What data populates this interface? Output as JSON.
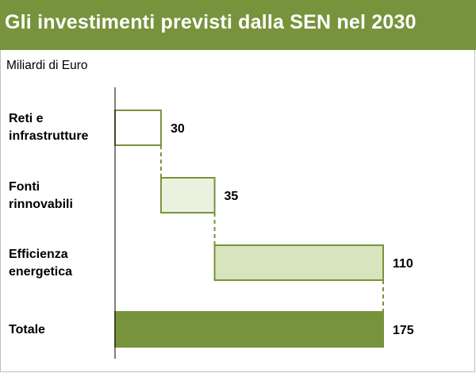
{
  "header": {
    "title": "Gli investimenti previsti dalla SEN nel 2030"
  },
  "chart_data": {
    "type": "bar",
    "subtype": "waterfall",
    "unit_label": "Miliardi di Euro",
    "orientation": "horizontal",
    "categories": [
      "Reti e\ninfrastrutture",
      "Fonti\nrinnovabili",
      "Efficienza\nenergetica",
      "Totale"
    ],
    "values": [
      30,
      35,
      110,
      175
    ],
    "data_labels": [
      "30",
      "35",
      "110",
      "175"
    ],
    "xlim": [
      0,
      175
    ],
    "grid": false,
    "colors": {
      "border": "#77933c",
      "fills": [
        "#ffffff",
        "#ebf1de",
        "#d7e4bd",
        "#77933c"
      ]
    }
  }
}
